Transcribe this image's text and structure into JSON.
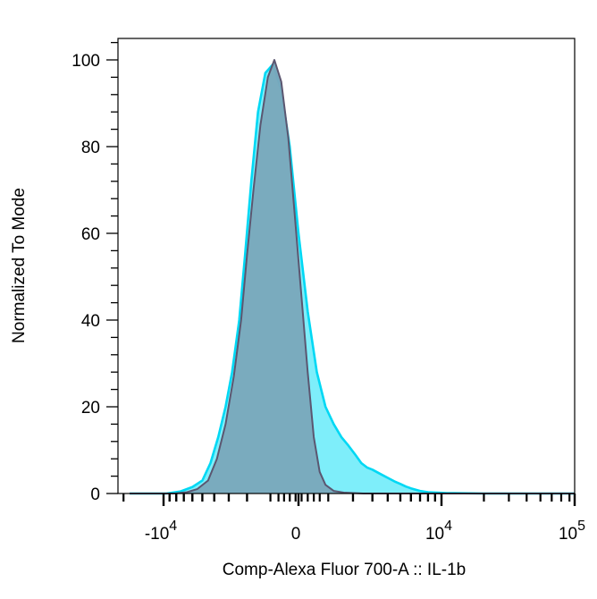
{
  "chart_data": {
    "type": "area",
    "xlabel": "Comp-Alexa Fluor 700-A :: IL-1b",
    "ylabel": "Normalized To Mode",
    "ylim": [
      0,
      104
    ],
    "y_ticks": [
      0,
      20,
      40,
      60,
      80,
      100
    ],
    "x_scale": "biexponential",
    "x_ticks": [
      {
        "value": -10000,
        "base": "-10",
        "exp": "4"
      },
      {
        "value": 0,
        "base": "0",
        "exp": ""
      },
      {
        "value": 10000,
        "base": "10",
        "exp": "4"
      },
      {
        "value": 100000,
        "base": "10",
        "exp": "5"
      }
    ],
    "grid": false,
    "legend": "none",
    "series": [
      {
        "color": "#00d8f4",
        "fill": "#7eeefa",
        "x": [
          -18000,
          -9500,
          -7400,
          -6000,
          -5000,
          -4300,
          -3700,
          -3200,
          -2800,
          -2400,
          -2100,
          -1800,
          -1500,
          -1200,
          -900,
          -600,
          -300,
          0,
          300,
          600,
          900,
          1200,
          1500,
          1800,
          2100,
          2400,
          2700,
          3000,
          3500,
          4000,
          4500,
          5000,
          5500,
          6000,
          7000,
          8000,
          11000,
          20000,
          60000,
          110000
        ],
        "y": [
          0,
          0,
          0.5,
          1.5,
          3,
          7,
          13,
          20,
          28,
          40,
          55,
          72,
          88,
          97,
          99,
          93,
          80,
          60,
          42,
          28,
          20,
          16,
          13,
          11,
          9,
          7,
          6,
          5.5,
          4.5,
          3.6,
          2.8,
          2.2,
          1.6,
          1.2,
          0.6,
          0.3,
          0.1,
          0,
          0,
          0
        ]
      },
      {
        "color": "#5b5670",
        "fill": "#7aa7ba",
        "x": [
          -18000,
          -8200,
          -6600,
          -5500,
          -4500,
          -3800,
          -3200,
          -2700,
          -2300,
          -2000,
          -1700,
          -1400,
          -1100,
          -850,
          -600,
          -350,
          -100,
          100,
          300,
          500,
          700,
          900,
          1200,
          1600,
          2500,
          110000
        ],
        "y": [
          0,
          0,
          0.3,
          1,
          3,
          8,
          16,
          27,
          40,
          55,
          70,
          85,
          96,
          100,
          95,
          82,
          62,
          45,
          28,
          13,
          5,
          2,
          0.6,
          0.2,
          0,
          0
        ]
      }
    ]
  }
}
